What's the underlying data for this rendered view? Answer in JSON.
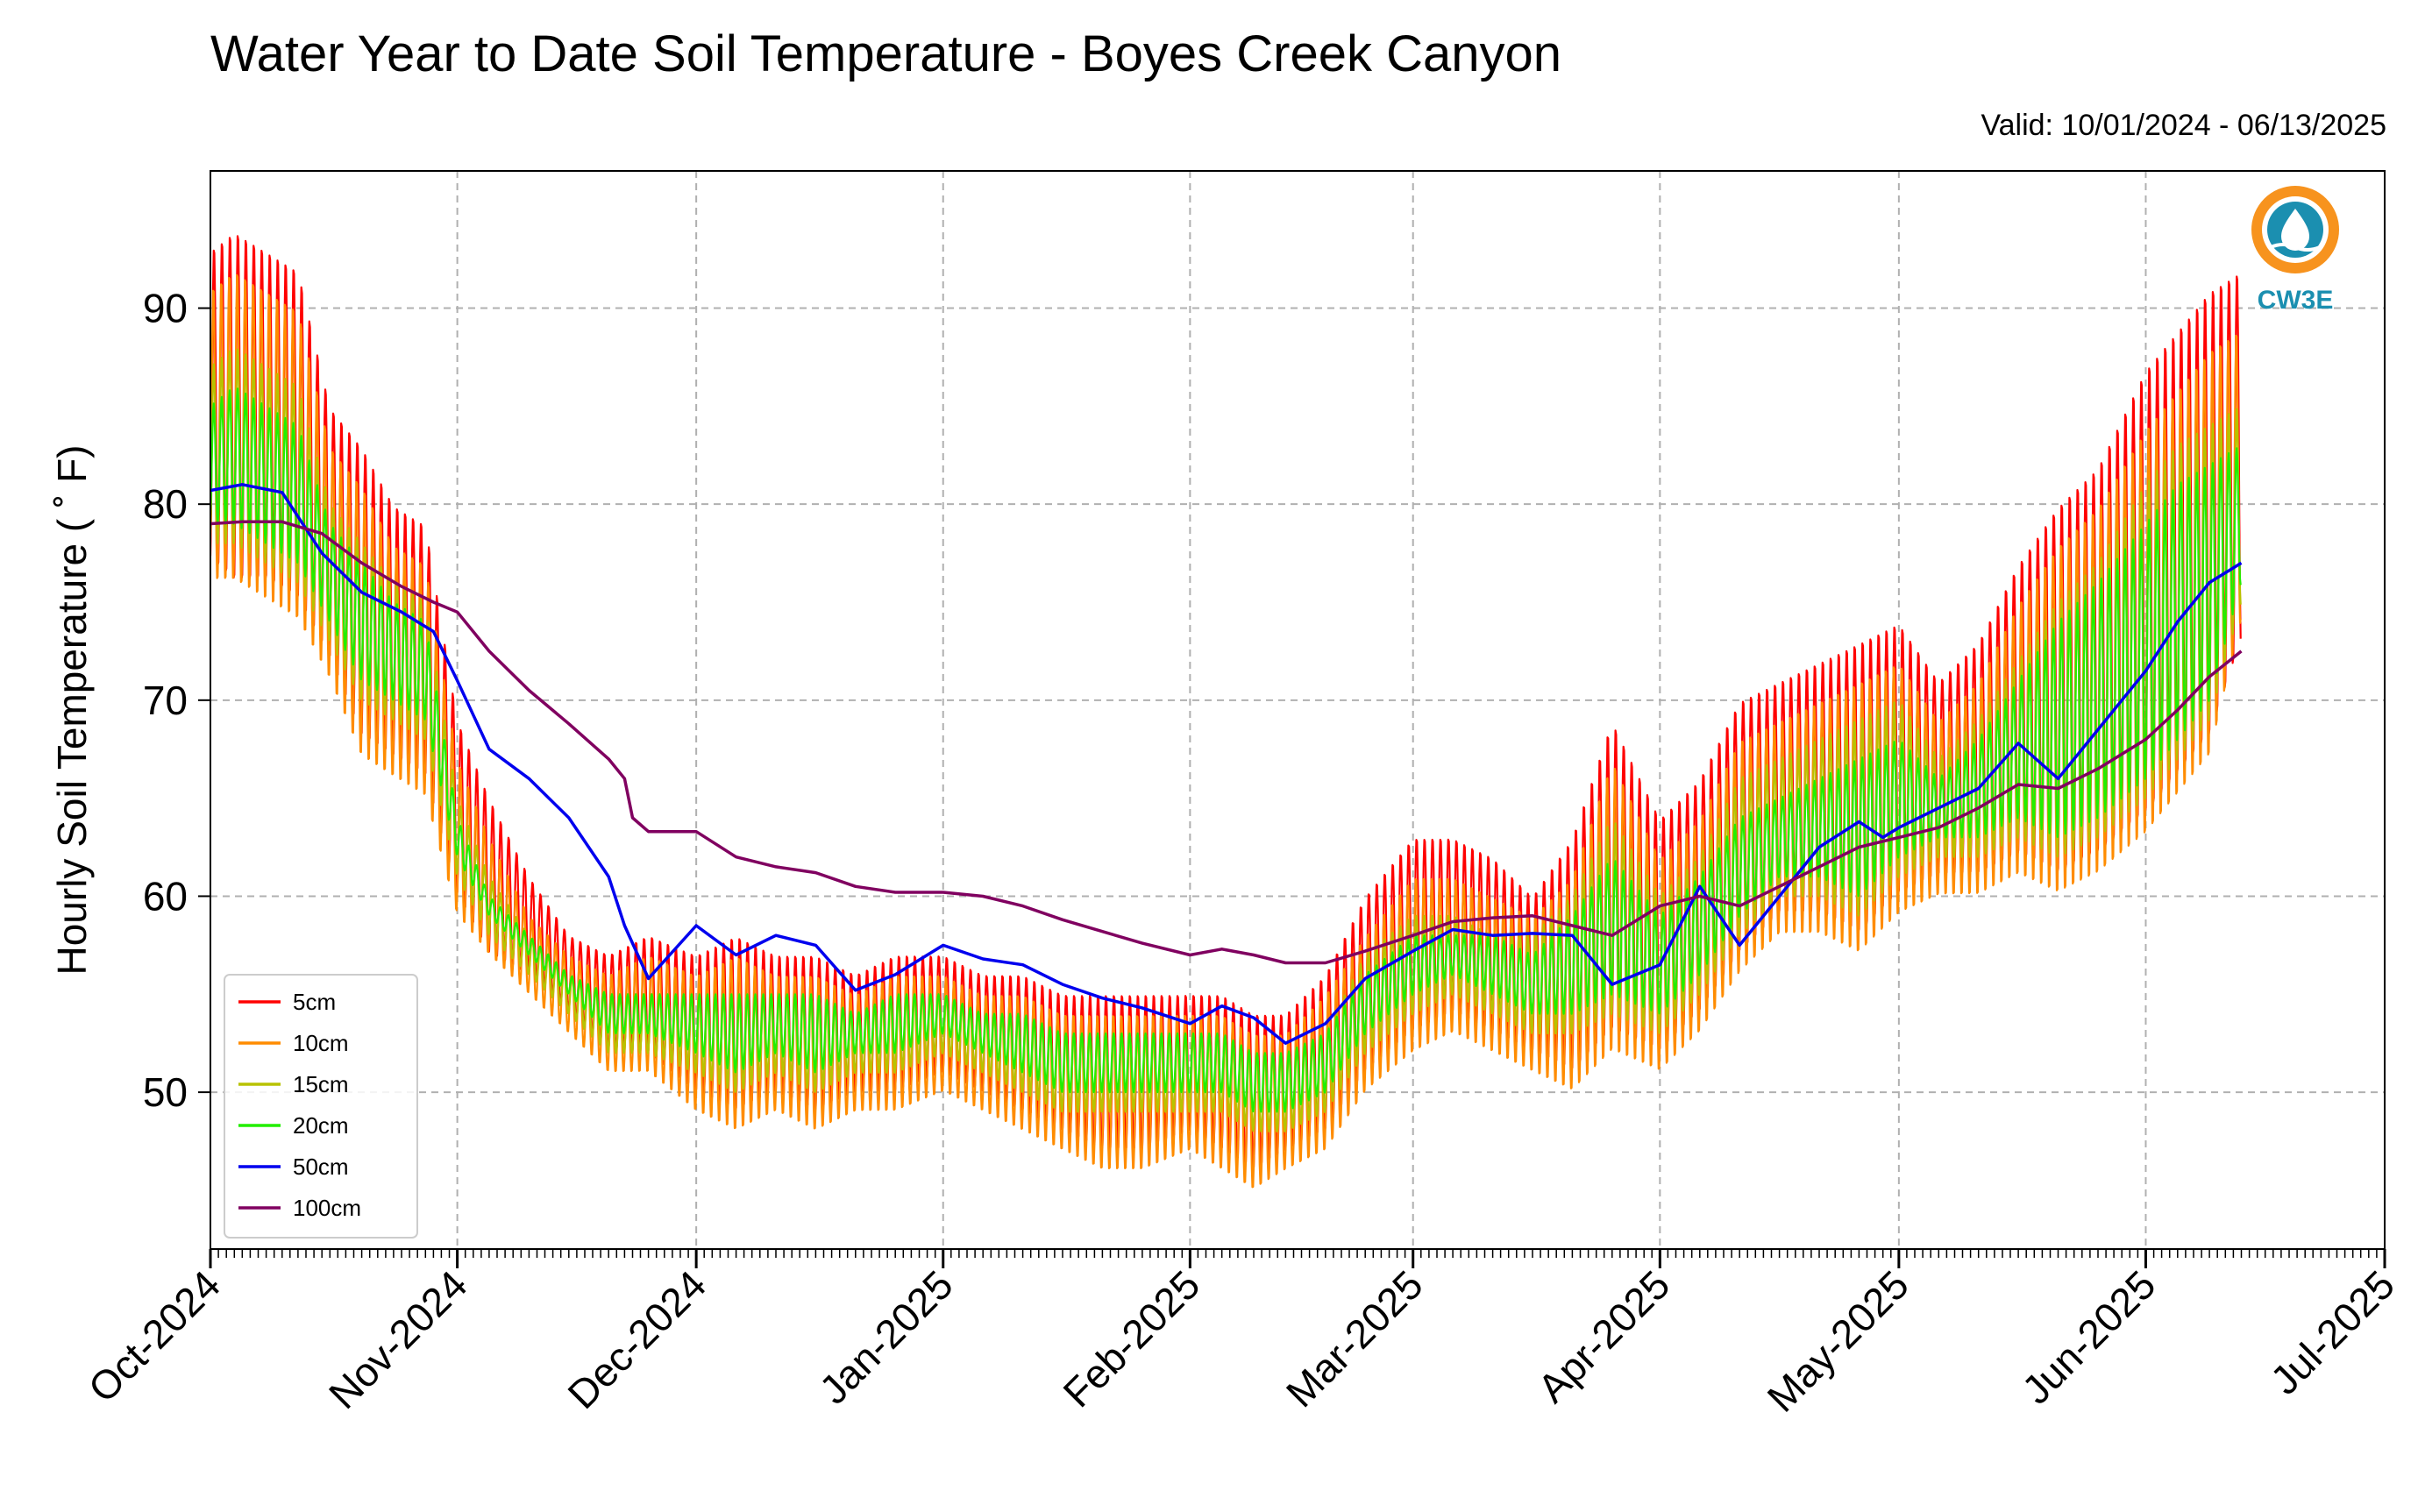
{
  "chart_data": {
    "type": "line",
    "title": "Water Year to Date Soil Temperature - Boyes Creek Canyon",
    "subtitle": "Valid: 10/01/2024 - 06/13/2025",
    "ylabel": "Hourly Soil Temperature ( ˚ F)",
    "xlabel": "",
    "ylim": [
      42,
      97
    ],
    "y_ticks": [
      50,
      60,
      70,
      80,
      90
    ],
    "x_range": [
      "2024-10-01",
      "2025-07-01"
    ],
    "x_ticks": [
      {
        "date": "2024-10-01",
        "label": "Oct-2024"
      },
      {
        "date": "2024-11-01",
        "label": "Nov-2024"
      },
      {
        "date": "2024-12-01",
        "label": "Dec-2024"
      },
      {
        "date": "2025-01-01",
        "label": "Jan-2025"
      },
      {
        "date": "2025-02-01",
        "label": "Feb-2025"
      },
      {
        "date": "2025-03-01",
        "label": "Mar-2025"
      },
      {
        "date": "2025-04-01",
        "label": "Apr-2025"
      },
      {
        "date": "2025-05-01",
        "label": "May-2025"
      },
      {
        "date": "2025-06-01",
        "label": "Jun-2025"
      },
      {
        "date": "2025-07-01",
        "label": "Jul-2025"
      }
    ],
    "grid": true,
    "legend_position": "lower-left",
    "series": [
      {
        "name": "5cm",
        "color": "#ff0000",
        "x": [
          "2024-10-01",
          "2024-10-04",
          "2024-10-08",
          "2024-10-12",
          "2024-10-16",
          "2024-10-20",
          "2024-10-24",
          "2024-10-28",
          "2024-11-01",
          "2024-11-05",
          "2024-11-10",
          "2024-11-15",
          "2024-11-20",
          "2024-11-25",
          "2024-12-01",
          "2024-12-06",
          "2024-12-11",
          "2024-12-16",
          "2024-12-21",
          "2024-12-26",
          "2025-01-01",
          "2025-01-06",
          "2025-01-11",
          "2025-01-16",
          "2025-01-21",
          "2025-01-26",
          "2025-02-01",
          "2025-02-05",
          "2025-02-09",
          "2025-02-13",
          "2025-02-18",
          "2025-02-23",
          "2025-03-01",
          "2025-03-06",
          "2025-03-11",
          "2025-03-16",
          "2025-03-21",
          "2025-03-26",
          "2025-04-01",
          "2025-04-06",
          "2025-04-11",
          "2025-04-16",
          "2025-04-21",
          "2025-04-26",
          "2025-05-01",
          "2025-05-06",
          "2025-05-11",
          "2025-05-16",
          "2025-05-21",
          "2025-05-26",
          "2025-06-01",
          "2025-06-05",
          "2025-06-09",
          "2025-06-13"
        ],
        "min": [
          77,
          76,
          76,
          75,
          72,
          68,
          67,
          66,
          60,
          57,
          56,
          54,
          52,
          52,
          50,
          49,
          50,
          49,
          50,
          50,
          51,
          50,
          49,
          48,
          47,
          47,
          48,
          47,
          46,
          47,
          48,
          51,
          53,
          54,
          53,
          52,
          51,
          53,
          52,
          54,
          57,
          59,
          59,
          58,
          60,
          61,
          61,
          62,
          61,
          62,
          64,
          66,
          68,
          73
        ],
        "max": [
          93,
          94,
          93,
          92,
          85,
          83,
          80,
          79,
          69,
          65,
          61,
          58,
          57,
          58,
          57,
          58,
          57,
          57,
          56,
          57,
          57,
          56,
          56,
          55,
          55,
          55,
          55,
          55,
          54,
          54,
          56,
          60,
          63,
          63,
          62,
          60,
          63,
          69,
          64,
          66,
          70,
          71,
          72,
          73,
          74,
          71,
          73,
          77,
          80,
          82,
          87,
          89,
          91,
          92
        ]
      },
      {
        "name": "10cm",
        "color": "#ff8c00",
        "x": [
          "2024-10-01",
          "2024-10-04",
          "2024-10-08",
          "2024-10-12",
          "2024-10-16",
          "2024-10-20",
          "2024-10-24",
          "2024-10-28",
          "2024-11-01",
          "2024-11-05",
          "2024-11-10",
          "2024-11-15",
          "2024-11-20",
          "2024-11-25",
          "2024-12-01",
          "2024-12-06",
          "2024-12-11",
          "2024-12-16",
          "2024-12-21",
          "2024-12-26",
          "2025-01-01",
          "2025-01-06",
          "2025-01-11",
          "2025-01-16",
          "2025-01-21",
          "2025-01-26",
          "2025-02-01",
          "2025-02-05",
          "2025-02-09",
          "2025-02-13",
          "2025-02-18",
          "2025-02-23",
          "2025-03-01",
          "2025-03-06",
          "2025-03-11",
          "2025-03-16",
          "2025-03-21",
          "2025-03-26",
          "2025-04-01",
          "2025-04-06",
          "2025-04-11",
          "2025-04-16",
          "2025-04-21",
          "2025-04-26",
          "2025-05-01",
          "2025-05-06",
          "2025-05-11",
          "2025-05-16",
          "2025-05-21",
          "2025-05-26",
          "2025-06-01",
          "2025-06-05",
          "2025-06-09",
          "2025-06-13"
        ],
        "min": [
          76,
          76,
          75,
          74,
          71,
          67,
          66,
          65,
          59,
          57,
          55,
          53,
          51,
          51,
          49,
          48,
          49,
          48,
          49,
          49,
          50,
          49,
          48,
          47,
          46,
          46,
          47,
          46,
          45,
          46,
          47,
          50,
          52,
          53,
          52,
          51,
          50,
          52,
          51,
          53,
          56,
          58,
          58,
          57,
          59,
          60,
          60,
          61,
          60,
          61,
          63,
          65,
          67,
          74
        ],
        "max": [
          91,
          92,
          91,
          90,
          83,
          81,
          78,
          77,
          67,
          63,
          59,
          57,
          56,
          57,
          56,
          57,
          56,
          56,
          55,
          56,
          56,
          55,
          55,
          54,
          54,
          54,
          54,
          54,
          53,
          53,
          55,
          58,
          61,
          61,
          60,
          59,
          61,
          67,
          62,
          64,
          68,
          69,
          70,
          71,
          72,
          69,
          71,
          75,
          78,
          80,
          84,
          86,
          88,
          89
        ]
      },
      {
        "name": "15cm",
        "color": "#b8c200",
        "x": [
          "2024-10-01",
          "2024-10-04",
          "2024-10-08",
          "2024-10-12",
          "2024-10-16",
          "2024-10-20",
          "2024-10-24",
          "2024-10-28",
          "2024-11-01",
          "2024-11-05",
          "2024-11-10",
          "2024-11-15",
          "2024-11-20",
          "2024-11-25",
          "2024-12-01",
          "2024-12-06",
          "2024-12-11",
          "2024-12-16",
          "2024-12-21",
          "2024-12-26",
          "2025-01-01",
          "2025-01-06",
          "2025-01-11",
          "2025-01-16",
          "2025-01-21",
          "2025-01-26",
          "2025-02-01",
          "2025-02-05",
          "2025-02-09",
          "2025-02-13",
          "2025-02-18",
          "2025-02-23",
          "2025-03-01",
          "2025-03-06",
          "2025-03-11",
          "2025-03-16",
          "2025-03-21",
          "2025-03-26",
          "2025-04-01",
          "2025-04-06",
          "2025-04-11",
          "2025-04-16",
          "2025-04-21",
          "2025-04-26",
          "2025-05-01",
          "2025-05-06",
          "2025-05-11",
          "2025-05-16",
          "2025-05-21",
          "2025-05-26",
          "2025-06-01",
          "2025-06-05",
          "2025-06-09",
          "2025-06-13"
        ],
        "min": [
          78,
          78,
          77,
          76,
          73,
          70,
          69,
          68,
          61,
          58,
          56,
          54,
          52,
          52,
          51,
          50,
          51,
          50,
          51,
          51,
          52,
          51,
          50,
          49,
          49,
          49,
          49,
          49,
          48,
          48,
          49,
          52,
          54,
          55,
          54,
          53,
          53,
          54,
          53,
          55,
          58,
          60,
          60,
          59,
          61,
          62,
          62,
          63,
          62,
          63,
          65,
          67,
          69,
          75
        ],
        "max": [
          87,
          88,
          87,
          86,
          80,
          78,
          76,
          75,
          65,
          61,
          58,
          56,
          55,
          55,
          55,
          55,
          55,
          55,
          54,
          55,
          55,
          54,
          54,
          53,
          53,
          53,
          53,
          53,
          52,
          52,
          53,
          57,
          59,
          59,
          58,
          58,
          60,
          64,
          60,
          62,
          66,
          67,
          68,
          69,
          70,
          67,
          69,
          72,
          75,
          77,
          81,
          83,
          84,
          85
        ]
      },
      {
        "name": "20cm",
        "color": "#22ee00",
        "x": [
          "2024-10-01",
          "2024-10-04",
          "2024-10-08",
          "2024-10-12",
          "2024-10-16",
          "2024-10-20",
          "2024-10-24",
          "2024-10-28",
          "2024-11-01",
          "2024-11-05",
          "2024-11-10",
          "2024-11-15",
          "2024-11-20",
          "2024-11-25",
          "2024-12-01",
          "2024-12-06",
          "2024-12-11",
          "2024-12-16",
          "2024-12-21",
          "2024-12-26",
          "2025-01-01",
          "2025-01-06",
          "2025-01-11",
          "2025-01-16",
          "2025-01-21",
          "2025-01-26",
          "2025-02-01",
          "2025-02-05",
          "2025-02-09",
          "2025-02-13",
          "2025-02-18",
          "2025-02-23",
          "2025-03-01",
          "2025-03-06",
          "2025-03-11",
          "2025-03-16",
          "2025-03-21",
          "2025-03-26",
          "2025-04-01",
          "2025-04-06",
          "2025-04-11",
          "2025-04-16",
          "2025-04-21",
          "2025-04-26",
          "2025-05-01",
          "2025-05-06",
          "2025-05-11",
          "2025-05-16",
          "2025-05-21",
          "2025-05-26",
          "2025-06-01",
          "2025-06-05",
          "2025-06-09",
          "2025-06-13"
        ],
        "min": [
          79,
          79,
          78,
          77,
          74,
          71,
          70,
          69,
          62,
          59,
          57,
          55,
          53,
          53,
          52,
          51,
          52,
          51,
          52,
          52,
          53,
          52,
          51,
          50,
          50,
          50,
          50,
          50,
          49,
          49,
          50,
          53,
          55,
          56,
          55,
          54,
          54,
          55,
          54,
          56,
          59,
          61,
          61,
          60,
          62,
          63,
          63,
          64,
          63,
          64,
          66,
          68,
          70,
          76
        ],
        "max": [
          85,
          86,
          85,
          84,
          79,
          77,
          75,
          74,
          64,
          60,
          58,
          56,
          55,
          55,
          55,
          55,
          55,
          55,
          54,
          55,
          55,
          54,
          54,
          53,
          53,
          53,
          53,
          53,
          52,
          52,
          53,
          56,
          58,
          58,
          58,
          57,
          59,
          62,
          59,
          61,
          64,
          65,
          66,
          67,
          68,
          66,
          68,
          71,
          74,
          76,
          79,
          81,
          82,
          83
        ]
      },
      {
        "name": "50cm",
        "color": "#0000ee",
        "x": [
          "2024-10-01",
          "2024-10-05",
          "2024-10-10",
          "2024-10-15",
          "2024-10-20",
          "2024-10-25",
          "2024-10-29",
          "2024-11-01",
          "2024-11-05",
          "2024-11-10",
          "2024-11-15",
          "2024-11-20",
          "2024-11-22",
          "2024-11-25",
          "2024-12-01",
          "2024-12-06",
          "2024-12-11",
          "2024-12-16",
          "2024-12-21",
          "2024-12-26",
          "2025-01-01",
          "2025-01-06",
          "2025-01-11",
          "2025-01-16",
          "2025-01-21",
          "2025-01-26",
          "2025-02-01",
          "2025-02-05",
          "2025-02-09",
          "2025-02-13",
          "2025-02-18",
          "2025-02-23",
          "2025-03-01",
          "2025-03-06",
          "2025-03-11",
          "2025-03-16",
          "2025-03-21",
          "2025-03-26",
          "2025-04-01",
          "2025-04-06",
          "2025-04-11",
          "2025-04-16",
          "2025-04-21",
          "2025-04-26",
          "2025-04-29",
          "2025-05-01",
          "2025-05-06",
          "2025-05-11",
          "2025-05-16",
          "2025-05-21",
          "2025-05-26",
          "2025-06-01",
          "2025-06-05",
          "2025-06-09",
          "2025-06-13"
        ],
        "values": [
          80.7,
          81.0,
          80.6,
          77.5,
          75.5,
          74.5,
          73.5,
          71,
          67.5,
          66,
          64,
          61,
          58.5,
          55.8,
          58.5,
          57,
          58,
          57.5,
          55.2,
          56,
          57.5,
          56.8,
          56.5,
          55.5,
          54.8,
          54.3,
          53.5,
          54.4,
          53.8,
          52.5,
          53.5,
          55.8,
          57.2,
          58.3,
          58.0,
          58.1,
          58.0,
          55.5,
          56.5,
          60.5,
          57.5,
          60.0,
          62.5,
          63.8,
          63.0,
          63.5,
          64.5,
          65.5,
          67.8,
          66.0,
          68.5,
          71.5,
          74.0,
          76.0,
          77.0
        ]
      },
      {
        "name": "100cm",
        "color": "#800060",
        "x": [
          "2024-10-01",
          "2024-10-05",
          "2024-10-10",
          "2024-10-15",
          "2024-10-20",
          "2024-10-25",
          "2024-10-29",
          "2024-11-01",
          "2024-11-05",
          "2024-11-10",
          "2024-11-15",
          "2024-11-20",
          "2024-11-22",
          "2024-11-23",
          "2024-11-25",
          "2024-12-01",
          "2024-12-06",
          "2024-12-11",
          "2024-12-16",
          "2024-12-21",
          "2024-12-26",
          "2025-01-01",
          "2025-01-06",
          "2025-01-11",
          "2025-01-16",
          "2025-01-21",
          "2025-01-26",
          "2025-02-01",
          "2025-02-05",
          "2025-02-09",
          "2025-02-13",
          "2025-02-18",
          "2025-02-23",
          "2025-03-01",
          "2025-03-06",
          "2025-03-11",
          "2025-03-16",
          "2025-03-21",
          "2025-03-26",
          "2025-04-01",
          "2025-04-06",
          "2025-04-11",
          "2025-04-16",
          "2025-04-21",
          "2025-04-26",
          "2025-05-01",
          "2025-05-06",
          "2025-05-11",
          "2025-05-16",
          "2025-05-21",
          "2025-05-26",
          "2025-06-01",
          "2025-06-05",
          "2025-06-09",
          "2025-06-13"
        ],
        "values": [
          79.0,
          79.1,
          79.1,
          78.5,
          77.0,
          75.8,
          75.0,
          74.5,
          72.5,
          70.5,
          68.8,
          67.0,
          66.0,
          64.0,
          63.3,
          63.3,
          62.0,
          61.5,
          61.2,
          60.5,
          60.2,
          60.2,
          60.0,
          59.5,
          58.8,
          58.2,
          57.6,
          57.0,
          57.3,
          57.0,
          56.6,
          56.6,
          57.2,
          58.0,
          58.7,
          58.9,
          59.0,
          58.5,
          58.0,
          59.5,
          60.0,
          59.5,
          60.5,
          61.5,
          62.5,
          63.0,
          63.5,
          64.5,
          65.7,
          65.5,
          66.5,
          68.0,
          69.5,
          71.2,
          72.5
        ]
      }
    ]
  },
  "legend": {
    "entries": [
      {
        "label": "5cm",
        "color": "#ff0000"
      },
      {
        "label": "10cm",
        "color": "#ff8c00"
      },
      {
        "label": "15cm",
        "color": "#b8c200"
      },
      {
        "label": "20cm",
        "color": "#22ee00"
      },
      {
        "label": "50cm",
        "color": "#0000ee"
      },
      {
        "label": "100cm",
        "color": "#800060"
      }
    ]
  },
  "logo": {
    "text": "CW3E",
    "icon": "water-drop-logo-icon",
    "accent": "#f7931e",
    "primary": "#1b8fb0"
  }
}
